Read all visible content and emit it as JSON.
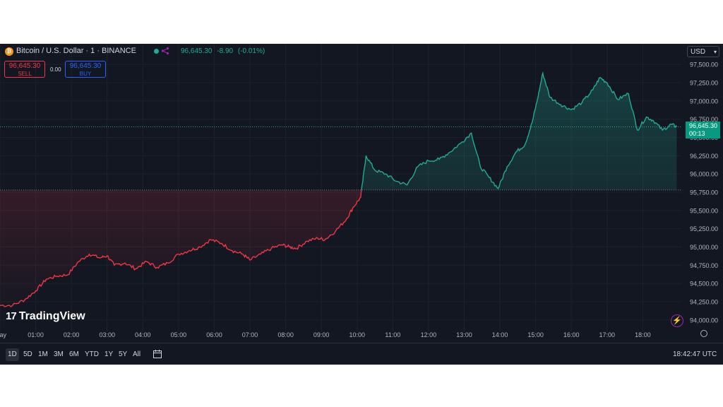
{
  "header": {
    "coin_letter": "₿",
    "symbol_title": "Bitcoin / U.S. Dollar · 1 · BINANCE",
    "last_price": "96,645.30",
    "change": "-8.90",
    "change_pct": "(-0.01%)",
    "currency": "USD"
  },
  "trade": {
    "sell_price": "96,645.30",
    "sell_label": "SELL",
    "buy_price": "96,645.30",
    "buy_label": "BUY",
    "spread": "0.00"
  },
  "watermark": "TradingView",
  "price_badge": {
    "price": "96,645.30",
    "countdown": "00:13"
  },
  "ranges": [
    "1D",
    "5D",
    "1M",
    "3M",
    "6M",
    "YTD",
    "1Y",
    "5Y",
    "All"
  ],
  "active_range": "1D",
  "clock": "18:42:47 UTC",
  "colors": {
    "up": "#22ab94",
    "down": "#f23645",
    "bg": "#131722",
    "grid": "#1e222d",
    "text": "#b2b5be"
  },
  "chart_data": {
    "type": "line",
    "title": "Bitcoin / U.S. Dollar · 1 · BINANCE",
    "xlabel": "",
    "ylabel": "",
    "x_ticks": [
      "ay",
      "01:00",
      "02:00",
      "03:00",
      "04:00",
      "05:00",
      "06:00",
      "07:00",
      "08:00",
      "09:00",
      "10:00",
      "11:00",
      "12:00",
      "13:00",
      "14:00",
      "15:00",
      "16:00",
      "17:00",
      "18:00"
    ],
    "y_ticks": [
      "94,000.00",
      "94,250.00",
      "94,500.00",
      "94,750.00",
      "95,000.00",
      "95,250.00",
      "95,500.00",
      "95,750.00",
      "96,000.00",
      "96,250.00",
      "96,500.00",
      "96,750.00",
      "97,000.00",
      "97,250.00",
      "97,500.00"
    ],
    "ylim": [
      93950,
      97550
    ],
    "xlim": [
      0,
      19.1
    ],
    "baseline": 95780,
    "current_price": 96645.3,
    "series": [
      {
        "points": [
          [
            0.0,
            94200
          ],
          [
            0.35,
            94200
          ],
          [
            0.7,
            94280
          ],
          [
            1.0,
            94400
          ],
          [
            1.3,
            94560
          ],
          [
            1.6,
            94600
          ],
          [
            1.9,
            94620
          ],
          [
            2.2,
            94800
          ],
          [
            2.5,
            94900
          ],
          [
            2.8,
            94850
          ],
          [
            3.0,
            94880
          ],
          [
            3.2,
            94750
          ],
          [
            3.5,
            94780
          ],
          [
            3.8,
            94700
          ],
          [
            4.1,
            94800
          ],
          [
            4.4,
            94720
          ],
          [
            4.7,
            94780
          ],
          [
            5.0,
            94900
          ],
          [
            5.3,
            94950
          ],
          [
            5.6,
            95000
          ],
          [
            5.9,
            95100
          ],
          [
            6.2,
            95050
          ],
          [
            6.5,
            94950
          ],
          [
            6.8,
            94900
          ],
          [
            7.0,
            94820
          ],
          [
            7.3,
            94900
          ],
          [
            7.6,
            94980
          ],
          [
            7.9,
            95030
          ],
          [
            8.1,
            95000
          ],
          [
            8.3,
            94980
          ],
          [
            8.6,
            95080
          ],
          [
            8.9,
            95120
          ],
          [
            9.1,
            95100
          ],
          [
            9.4,
            95220
          ],
          [
            9.7,
            95380
          ],
          [
            9.9,
            95550
          ],
          [
            10.1,
            95680
          ],
          [
            10.25,
            96250
          ],
          [
            10.5,
            96050
          ],
          [
            10.8,
            96000
          ],
          [
            11.1,
            95900
          ],
          [
            11.4,
            95850
          ],
          [
            11.7,
            96100
          ],
          [
            12.0,
            96180
          ],
          [
            12.3,
            96200
          ],
          [
            12.6,
            96300
          ],
          [
            12.9,
            96420
          ],
          [
            13.2,
            96560
          ],
          [
            13.45,
            96100
          ],
          [
            13.7,
            95950
          ],
          [
            13.95,
            95800
          ],
          [
            14.2,
            96100
          ],
          [
            14.45,
            96300
          ],
          [
            14.7,
            96400
          ],
          [
            14.9,
            96700
          ],
          [
            15.05,
            97020
          ],
          [
            15.2,
            97380
          ],
          [
            15.4,
            97050
          ],
          [
            15.7,
            96950
          ],
          [
            16.0,
            96880
          ],
          [
            16.3,
            96980
          ],
          [
            16.6,
            97150
          ],
          [
            16.8,
            97320
          ],
          [
            17.0,
            97250
          ],
          [
            17.3,
            97020
          ],
          [
            17.6,
            97100
          ],
          [
            17.85,
            96600
          ],
          [
            18.1,
            96780
          ],
          [
            18.3,
            96730
          ],
          [
            18.55,
            96600
          ],
          [
            18.8,
            96680
          ],
          [
            18.95,
            96645.3
          ]
        ]
      }
    ]
  }
}
